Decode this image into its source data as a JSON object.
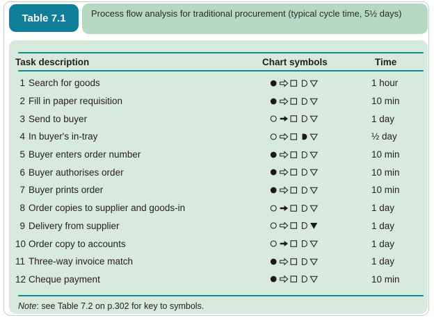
{
  "header": {
    "table_label": "Table 7.1",
    "title": "Process flow analysis for traditional procurement (typical cycle time, 5½ days)"
  },
  "table": {
    "columns": [
      "Task description",
      "Chart symbols",
      "Time"
    ],
    "rows": [
      {
        "num": "1",
        "task": "Search for goods",
        "symbols": [
          "operation-filled",
          "transport-open",
          "inspection-open",
          "delay-open",
          "storage-open"
        ],
        "time": "1 hour"
      },
      {
        "num": "2",
        "task": "Fill in paper requisition",
        "symbols": [
          "operation-filled",
          "transport-open",
          "inspection-open",
          "delay-open",
          "storage-open"
        ],
        "time": "10 min"
      },
      {
        "num": "3",
        "task": "Send to buyer",
        "symbols": [
          "operation-open",
          "transport-filled",
          "inspection-open",
          "delay-open",
          "storage-open"
        ],
        "time": "1 day"
      },
      {
        "num": "4",
        "task": "In buyer's in-tray",
        "symbols": [
          "operation-open",
          "transport-open",
          "inspection-open",
          "delay-filled",
          "storage-open"
        ],
        "time": "½ day"
      },
      {
        "num": "5",
        "task": "Buyer enters order number",
        "symbols": [
          "operation-filled",
          "transport-open",
          "inspection-open",
          "delay-open",
          "storage-open"
        ],
        "time": "10 min"
      },
      {
        "num": "6",
        "task": "Buyer authorises order",
        "symbols": [
          "operation-filled",
          "transport-open",
          "inspection-open",
          "delay-open",
          "storage-open"
        ],
        "time": "10 min"
      },
      {
        "num": "7",
        "task": "Buyer prints order",
        "symbols": [
          "operation-filled",
          "transport-open",
          "inspection-open",
          "delay-open",
          "storage-open"
        ],
        "time": "10 min"
      },
      {
        "num": "8",
        "task": "Order copies to supplier and goods-in",
        "symbols": [
          "operation-open",
          "transport-filled",
          "inspection-open",
          "delay-open",
          "storage-open"
        ],
        "time": "1 day"
      },
      {
        "num": "9",
        "task": "Delivery from supplier",
        "symbols": [
          "operation-open",
          "transport-open",
          "inspection-open",
          "delay-open",
          "storage-filled"
        ],
        "time": "1 day"
      },
      {
        "num": "10",
        "task": "Order copy to accounts",
        "symbols": [
          "operation-open",
          "transport-filled",
          "inspection-open",
          "delay-open",
          "storage-open"
        ],
        "time": "1 day"
      },
      {
        "num": "11",
        "task": "Three-way invoice match",
        "symbols": [
          "operation-filled",
          "transport-open",
          "inspection-open",
          "delay-open",
          "storage-open"
        ],
        "time": "1 day"
      },
      {
        "num": "12",
        "task": "Cheque payment",
        "symbols": [
          "operation-filled",
          "transport-open",
          "inspection-open",
          "delay-open",
          "storage-open"
        ],
        "time": "10 min"
      }
    ]
  },
  "note": {
    "label": "Note",
    "text": ": see Table 7.2 on p.302 for key to symbols."
  },
  "symbol_glyphs": {
    "operation-filled": "●",
    "operation-open": "○",
    "transport-open": "⇨",
    "transport-filled": "➔",
    "inspection-open": "□",
    "delay-open": "D",
    "delay-filled": "◗",
    "storage-open": "▽",
    "storage-filled": "▼"
  },
  "colors": {
    "badge_teal": "#0f7e99",
    "rule_teal": "#0a8a9c",
    "title_green": "#b5d9c2",
    "panel_green": "#d8e9dd",
    "border_gray": "#c9cdc9",
    "text": "#231f20"
  }
}
